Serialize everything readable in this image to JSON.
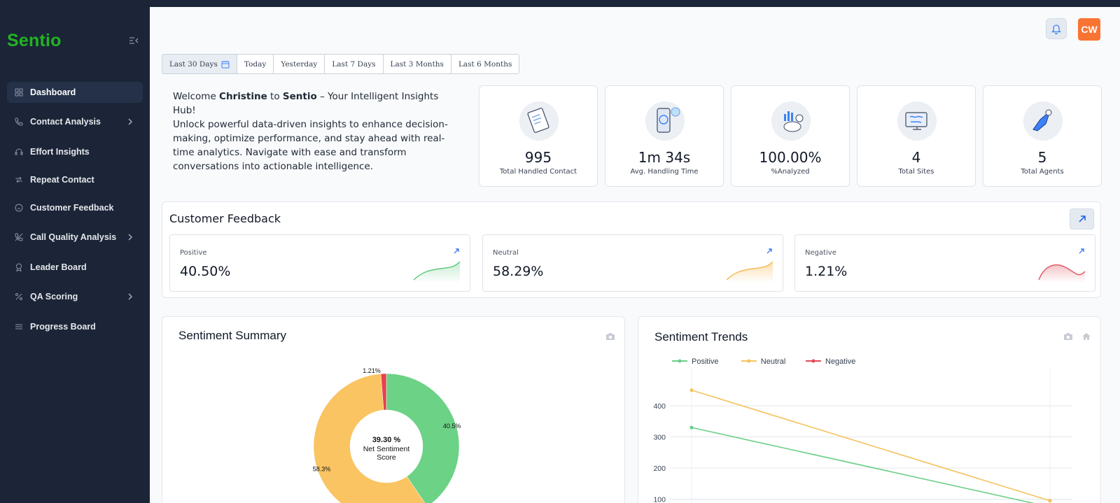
{
  "app": {
    "brand": "Sentio",
    "avatar_initials": "CW"
  },
  "sidebar": {
    "items": [
      {
        "label": "Dashboard",
        "icon": "grid-icon",
        "active": true,
        "expandable": false
      },
      {
        "label": "Contact Analysis",
        "icon": "phone-icon",
        "active": false,
        "expandable": true
      },
      {
        "label": "Effort Insights",
        "icon": "headset-icon",
        "active": false,
        "expandable": false
      },
      {
        "label": "Repeat Contact",
        "icon": "repeat-icon",
        "active": false,
        "expandable": false
      },
      {
        "label": "Customer Feedback",
        "icon": "smile-icon",
        "active": false,
        "expandable": false
      },
      {
        "label": "Call Quality Analysis",
        "icon": "phone-slash-icon",
        "active": false,
        "expandable": true
      },
      {
        "label": "Leader Board",
        "icon": "award-icon",
        "active": false,
        "expandable": false
      },
      {
        "label": "QA Scoring",
        "icon": "percent-icon",
        "active": false,
        "expandable": true
      },
      {
        "label": "Progress Board",
        "icon": "list-icon",
        "active": false,
        "expandable": false
      }
    ]
  },
  "date_range": {
    "options": [
      "Last 30 Days",
      "Today",
      "Yesterday",
      "Last 7 Days",
      "Last 3 Months",
      "Last 6 Months"
    ],
    "selected": "Last 30 Days"
  },
  "welcome": {
    "prefix": "Welcome ",
    "user": "Christine",
    "mid": " to ",
    "product": "Sentio",
    "suffix": " – Your Intelligent Insights Hub!",
    "body": "Unlock powerful data-driven insights to enhance decision-making, optimize performance, and stay ahead with real-time analytics. Navigate with ease and transform conversations into actionable intelligence."
  },
  "stats": [
    {
      "value": "995",
      "label": "Total Handled Contact",
      "icon": "notebook-icon"
    },
    {
      "value": "1m 34s",
      "label": "Avg. Handling Time",
      "icon": "phone-time-icon"
    },
    {
      "value": "100.00%",
      "label": "%Analyzed",
      "icon": "analytics-icon"
    },
    {
      "value": "4",
      "label": "Total Sites",
      "icon": "globe-monitor-icon"
    },
    {
      "value": "5",
      "label": "Total Agents",
      "icon": "agent-rocket-icon"
    }
  ],
  "customer_feedback": {
    "title": "Customer Feedback",
    "cards": [
      {
        "label": "Positive",
        "value": "40.50%",
        "color": "#5cc87a"
      },
      {
        "label": "Neutral",
        "value": "58.29%",
        "color": "#f5b84f"
      },
      {
        "label": "Negative",
        "value": "1.21%",
        "color": "#e0515c"
      }
    ]
  },
  "sentiment_summary": {
    "title": "Sentiment Summary",
    "center_value": "39.30 %",
    "center_label_1": "Net Sentiment",
    "center_label_2": "Score"
  },
  "sentiment_trends": {
    "title": "Sentiment Trends"
  },
  "chart_data": [
    {
      "type": "pie",
      "title": "Sentiment Summary",
      "categories": [
        "Positive",
        "Neutral",
        "Negative"
      ],
      "values": [
        40.5,
        58.3,
        1.21
      ],
      "labels": [
        "40.5%",
        "58.3%",
        "1.21%"
      ],
      "colors": [
        "#6bd286",
        "#f9c461",
        "#e5414f"
      ],
      "hole": true
    },
    {
      "type": "line",
      "title": "Sentiment Trends",
      "legend_position": "top-left",
      "yticks": [
        100,
        200,
        300,
        400
      ],
      "ylim": [
        0,
        470
      ],
      "series": [
        {
          "name": "Positive",
          "color": "#6ccf88",
          "values": [
            330,
            75
          ]
        },
        {
          "name": "Neutral",
          "color": "#f4c35d",
          "values": [
            450,
            95
          ]
        },
        {
          "name": "Negative",
          "color": "#e04a57",
          "values": []
        }
      ]
    }
  ]
}
